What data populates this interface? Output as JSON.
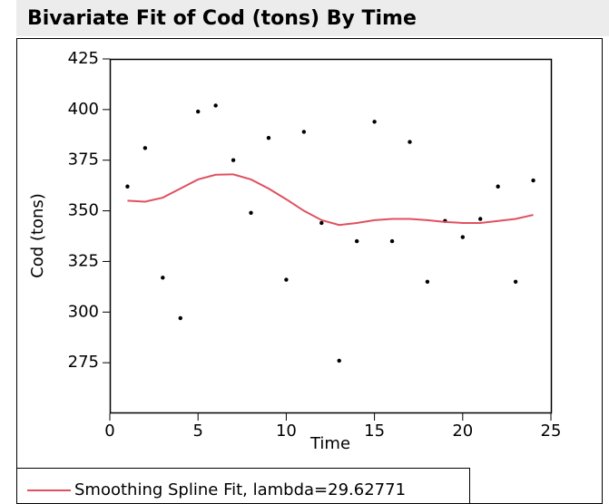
{
  "chart_data": {
    "type": "scatter",
    "title": "Bivariate Fit of Cod (tons) By Time",
    "xlabel": "Time",
    "ylabel": "Cod (tons)",
    "xlim": [
      0,
      25
    ],
    "xticks": [
      0,
      5,
      10,
      15,
      20,
      25
    ],
    "ylim": [
      250,
      425
    ],
    "yticks": [
      275,
      300,
      325,
      350,
      375,
      400,
      425
    ],
    "series": [
      {
        "type": "scatter",
        "color": "#000000",
        "x": [
          1,
          2,
          3,
          4,
          5,
          6,
          7,
          8,
          9,
          10,
          11,
          12,
          13,
          14,
          15,
          16,
          17,
          18,
          19,
          20,
          21,
          22,
          23,
          24
        ],
        "values": [
          362,
          381,
          317,
          297,
          399,
          402,
          375,
          349,
          386,
          316,
          389,
          344,
          276,
          335,
          394,
          335,
          384,
          315,
          345,
          337,
          346,
          362,
          315,
          365
        ]
      },
      {
        "type": "line",
        "name": "Smoothing Spline Fit, lambda=29.62771",
        "color": "#e0505f",
        "x": [
          1,
          2,
          3,
          4,
          5,
          6,
          7,
          8,
          9,
          10,
          11,
          12,
          13,
          14,
          15,
          16,
          17,
          18,
          19,
          20,
          21,
          22,
          23,
          24
        ],
        "values": [
          355,
          354.5,
          356.5,
          361,
          365.5,
          367.8,
          368,
          365.5,
          361,
          355.7,
          350,
          345.4,
          343,
          344,
          345.4,
          346,
          346,
          345.4,
          344.5,
          344,
          344,
          345,
          346,
          348
        ]
      }
    ]
  }
}
